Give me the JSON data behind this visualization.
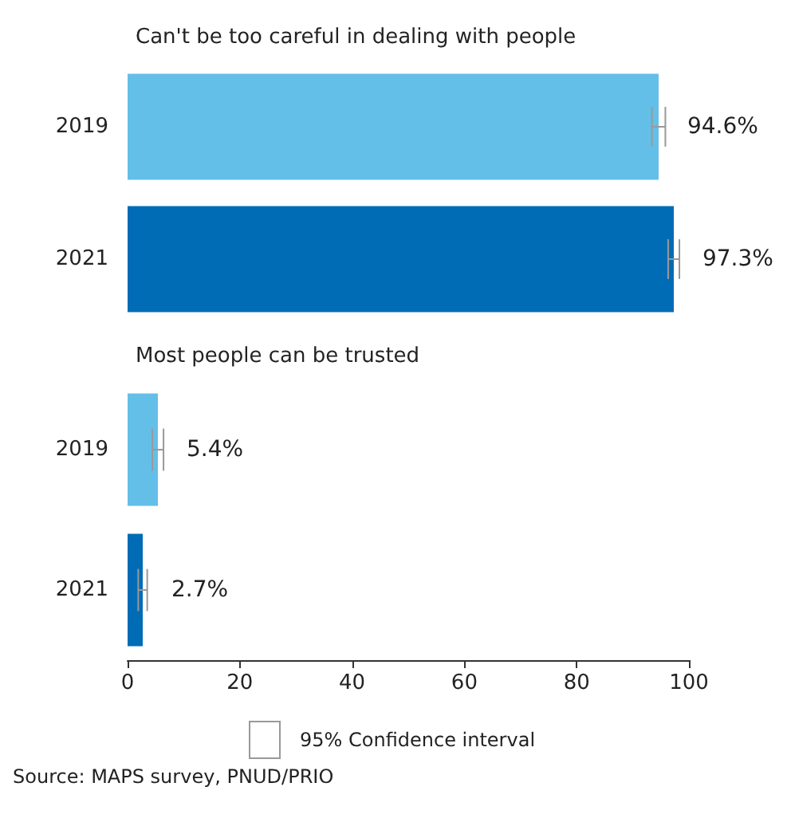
{
  "chart_data": [
    {
      "type": "bar",
      "orientation": "horizontal",
      "title": "Can't be too careful in dealing with people",
      "categories": [
        "2019",
        "2021"
      ],
      "values": [
        94.6,
        97.3
      ],
      "colors": [
        "#63bfe8",
        "#006cb5"
      ],
      "errors": [
        1.2,
        1.0
      ],
      "value_labels": [
        "94.6%",
        "97.3%"
      ],
      "xlim": [
        0,
        100
      ],
      "xticks": [
        0,
        20,
        40,
        60,
        80,
        100
      ],
      "tick_labels": "y",
      "grid": false
    },
    {
      "type": "bar",
      "orientation": "horizontal",
      "title": "Most people can be trusted",
      "categories": [
        "2019",
        "2021"
      ],
      "values": [
        5.4,
        2.7
      ],
      "colors": [
        "#63bfe8",
        "#006cb5"
      ],
      "errors": [
        1.0,
        0.8
      ],
      "value_labels": [
        "5.4%",
        "2.7%"
      ],
      "xlim": [
        0,
        100
      ],
      "xticks": [
        0,
        20,
        40,
        60,
        80,
        100
      ],
      "grid": false,
      "legend_title": "95% Confidence interval",
      "annotations": [
        "Source: MAPS survey, PNUD/PRIO"
      ]
    }
  ]
}
